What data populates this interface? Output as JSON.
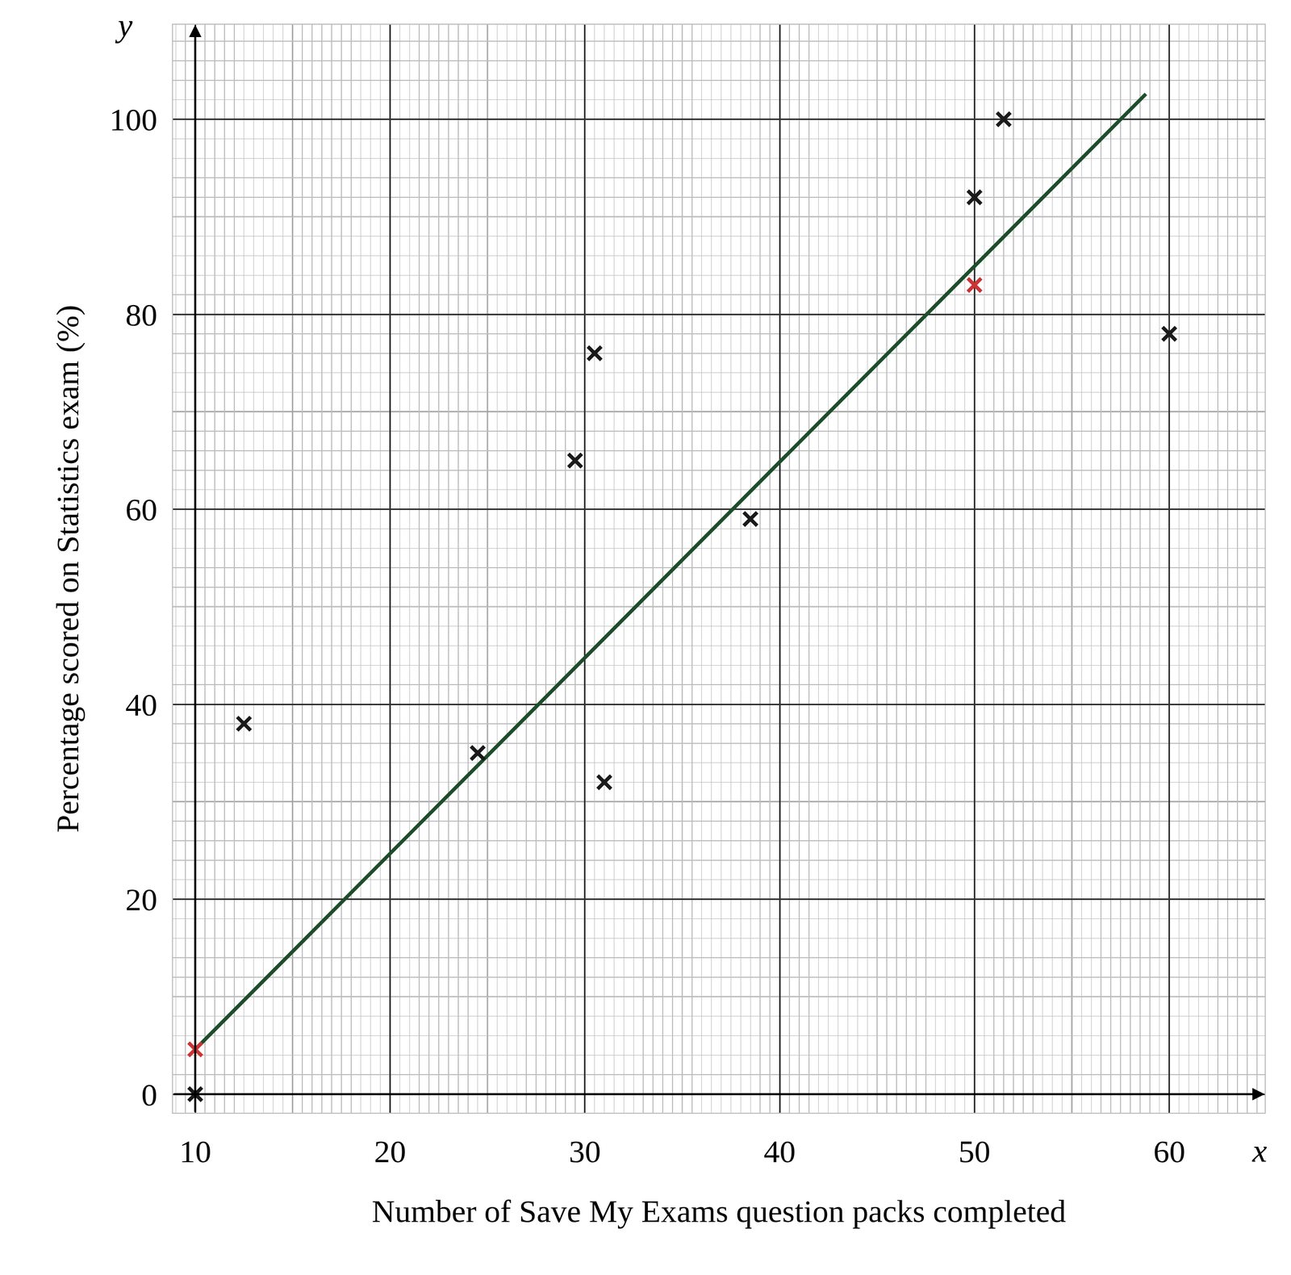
{
  "chart_data": {
    "type": "scatter",
    "x_label": "Number of Save My Exams question packs completed",
    "y_label": "Percentage scored on Statistics exam (%)",
    "x_symbol": "x",
    "y_symbol": "y",
    "xlim": [
      8.86,
      64.9
    ],
    "ylim": [
      -1.9,
      109.7
    ],
    "xticks": [
      10,
      20,
      30,
      40,
      50,
      60
    ],
    "yticks": [
      0,
      20,
      40,
      60,
      80,
      100
    ],
    "grid": true,
    "series": [
      {
        "type": "scatter",
        "marker": "x",
        "color": "#1a1a1a",
        "x": [
          10,
          12.5,
          24.5,
          29.5,
          30.5,
          31,
          38.5,
          50,
          51.5,
          60
        ],
        "values": [
          0,
          38,
          35,
          65,
          76,
          32,
          59,
          92,
          100,
          78
        ]
      },
      {
        "type": "scatter",
        "marker": "x",
        "color": "#cc3333",
        "x": [
          10,
          50
        ],
        "values": [
          4.6,
          83
        ]
      },
      {
        "type": "line",
        "line_style": "solid",
        "color": "#1d4d2b",
        "x": [
          10,
          58.8
        ],
        "values": [
          4.6,
          102.6
        ]
      }
    ]
  }
}
